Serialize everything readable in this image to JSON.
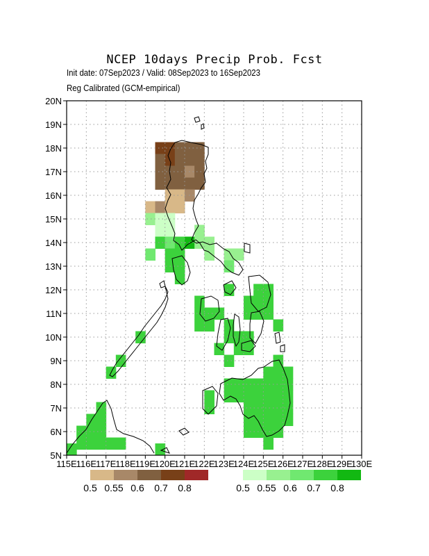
{
  "title": "NCEP 10days Precip Prob. Fcst",
  "subtitle_1": "Init date: 07Sep2023 / Valid: 08Sep2023 to 16Sep2023",
  "subtitle_2": "Reg Calibrated (GCM-empirical)",
  "map": {
    "lon_range": [
      115,
      130
    ],
    "lat_range": [
      5,
      20
    ],
    "x_ticks": [
      "115E",
      "116E",
      "117E",
      "118E",
      "119E",
      "120E",
      "121E",
      "122E",
      "123E",
      "124E",
      "125E",
      "126E",
      "127E",
      "128E",
      "129E",
      "130E"
    ],
    "y_ticks": [
      "5N",
      "6N",
      "7N",
      "8N",
      "9N",
      "10N",
      "11N",
      "12N",
      "13N",
      "14N",
      "15N",
      "16N",
      "17N",
      "18N",
      "19N",
      "20N"
    ],
    "grid": true,
    "cell_deg": 0.5
  },
  "legend_dry": {
    "colors": [
      "#d8b888",
      "#a88868",
      "#806040",
      "#784018",
      "#a02828"
    ],
    "labels": [
      "0.5",
      "0.55",
      "0.6",
      "0.7",
      "0.8"
    ]
  },
  "legend_wet": {
    "colors": [
      "#ccffc6",
      "#98f090",
      "#70e870",
      "#3cd23c",
      "#12b812"
    ],
    "labels": [
      "0.5",
      "0.55",
      "0.6",
      "0.7",
      "0.8"
    ]
  },
  "dry_cells": [
    {
      "lon": 119.75,
      "lat": 18.0,
      "level": 3
    },
    {
      "lon": 120.25,
      "lat": 18.0,
      "level": 3
    },
    {
      "lon": 120.75,
      "lat": 18.0,
      "level": 2
    },
    {
      "lon": 121.25,
      "lat": 18.0,
      "level": 2
    },
    {
      "lon": 121.75,
      "lat": 18.0,
      "level": 2
    },
    {
      "lon": 119.75,
      "lat": 17.5,
      "level": 2
    },
    {
      "lon": 120.25,
      "lat": 17.5,
      "level": 3
    },
    {
      "lon": 120.75,
      "lat": 17.5,
      "level": 2
    },
    {
      "lon": 121.25,
      "lat": 17.5,
      "level": 2
    },
    {
      "lon": 121.75,
      "lat": 17.5,
      "level": 2
    },
    {
      "lon": 119.75,
      "lat": 17.0,
      "level": 2
    },
    {
      "lon": 120.25,
      "lat": 17.0,
      "level": 2
    },
    {
      "lon": 120.75,
      "lat": 17.0,
      "level": 2
    },
    {
      "lon": 121.25,
      "lat": 17.0,
      "level": 1
    },
    {
      "lon": 121.75,
      "lat": 17.0,
      "level": 2
    },
    {
      "lon": 119.75,
      "lat": 16.5,
      "level": 2
    },
    {
      "lon": 120.25,
      "lat": 16.5,
      "level": 2
    },
    {
      "lon": 120.75,
      "lat": 16.5,
      "level": 2
    },
    {
      "lon": 121.25,
      "lat": 16.5,
      "level": 2
    },
    {
      "lon": 121.75,
      "lat": 16.5,
      "level": 2
    },
    {
      "lon": 120.25,
      "lat": 16.0,
      "level": 0
    },
    {
      "lon": 120.75,
      "lat": 16.0,
      "level": 0
    },
    {
      "lon": 121.25,
      "lat": 16.0,
      "level": 1
    },
    {
      "lon": 119.25,
      "lat": 15.5,
      "level": 0
    },
    {
      "lon": 119.75,
      "lat": 15.5,
      "level": 1
    },
    {
      "lon": 120.25,
      "lat": 15.5,
      "level": 0
    },
    {
      "lon": 120.75,
      "lat": 15.5,
      "level": 0
    }
  ],
  "wet_cells": [
    {
      "lon": 119.25,
      "lat": 15.0,
      "level": 1
    },
    {
      "lon": 119.75,
      "lat": 15.0,
      "level": 0
    },
    {
      "lon": 120.25,
      "lat": 15.0,
      "level": 0
    },
    {
      "lon": 119.75,
      "lat": 14.5,
      "level": 0
    },
    {
      "lon": 120.25,
      "lat": 14.5,
      "level": 0
    },
    {
      "lon": 121.75,
      "lat": 14.5,
      "level": 1
    },
    {
      "lon": 119.75,
      "lat": 14.0,
      "level": 3
    },
    {
      "lon": 120.25,
      "lat": 14.0,
      "level": 2
    },
    {
      "lon": 120.75,
      "lat": 14.0,
      "level": 3
    },
    {
      "lon": 121.25,
      "lat": 14.0,
      "level": 4
    },
    {
      "lon": 121.75,
      "lat": 14.0,
      "level": 1
    },
    {
      "lon": 122.25,
      "lat": 14.0,
      "level": 1
    },
    {
      "lon": 119.25,
      "lat": 13.5,
      "level": 2
    },
    {
      "lon": 120.25,
      "lat": 13.5,
      "level": 3
    },
    {
      "lon": 120.75,
      "lat": 13.5,
      "level": 3
    },
    {
      "lon": 122.25,
      "lat": 13.5,
      "level": 1
    },
    {
      "lon": 123.25,
      "lat": 13.5,
      "level": 1
    },
    {
      "lon": 123.75,
      "lat": 13.5,
      "level": 1
    },
    {
      "lon": 120.25,
      "lat": 13.0,
      "level": 3
    },
    {
      "lon": 120.75,
      "lat": 13.0,
      "level": 3
    },
    {
      "lon": 123.25,
      "lat": 13.0,
      "level": 2
    },
    {
      "lon": 120.75,
      "lat": 12.5,
      "level": 3
    },
    {
      "lon": 123.25,
      "lat": 12.0,
      "level": 3
    },
    {
      "lon": 124.75,
      "lat": 12.0,
      "level": 3
    },
    {
      "lon": 125.25,
      "lat": 12.0,
      "level": 3
    },
    {
      "lon": 121.75,
      "lat": 11.5,
      "level": 3
    },
    {
      "lon": 124.25,
      "lat": 11.5,
      "level": 3
    },
    {
      "lon": 124.75,
      "lat": 11.5,
      "level": 3
    },
    {
      "lon": 125.25,
      "lat": 11.5,
      "level": 3
    },
    {
      "lon": 121.75,
      "lat": 11.0,
      "level": 3
    },
    {
      "lon": 122.25,
      "lat": 11.0,
      "level": 3
    },
    {
      "lon": 122.75,
      "lat": 11.0,
      "level": 3
    },
    {
      "lon": 124.25,
      "lat": 11.0,
      "level": 3
    },
    {
      "lon": 124.75,
      "lat": 11.0,
      "level": 3
    },
    {
      "lon": 125.25,
      "lat": 11.0,
      "level": 3
    },
    {
      "lon": 121.75,
      "lat": 10.5,
      "level": 3
    },
    {
      "lon": 122.25,
      "lat": 10.5,
      "level": 3
    },
    {
      "lon": 123.25,
      "lat": 10.5,
      "level": 3
    },
    {
      "lon": 125.75,
      "lat": 10.5,
      "level": 3
    },
    {
      "lon": 123.25,
      "lat": 10.0,
      "level": 3
    },
    {
      "lon": 123.75,
      "lat": 10.0,
      "level": 3
    },
    {
      "lon": 124.25,
      "lat": 10.0,
      "level": 3
    },
    {
      "lon": 118.75,
      "lat": 10.0,
      "level": 3
    },
    {
      "lon": 122.75,
      "lat": 9.5,
      "level": 3
    },
    {
      "lon": 123.75,
      "lat": 9.5,
      "level": 3
    },
    {
      "lon": 124.25,
      "lat": 9.5,
      "level": 3
    },
    {
      "lon": 117.75,
      "lat": 9.0,
      "level": 3
    },
    {
      "lon": 123.25,
      "lat": 9.0,
      "level": 3
    },
    {
      "lon": 125.75,
      "lat": 9.0,
      "level": 3
    },
    {
      "lon": 117.25,
      "lat": 8.5,
      "level": 3
    },
    {
      "lon": 125.25,
      "lat": 8.5,
      "level": 3
    },
    {
      "lon": 125.75,
      "lat": 8.5,
      "level": 3
    },
    {
      "lon": 126.25,
      "lat": 8.5,
      "level": 3
    },
    {
      "lon": 123.25,
      "lat": 8.0,
      "level": 3
    },
    {
      "lon": 123.75,
      "lat": 8.0,
      "level": 3
    },
    {
      "lon": 124.25,
      "lat": 8.0,
      "level": 3
    },
    {
      "lon": 124.75,
      "lat": 8.0,
      "level": 3
    },
    {
      "lon": 125.25,
      "lat": 8.0,
      "level": 3
    },
    {
      "lon": 125.75,
      "lat": 8.0,
      "level": 3
    },
    {
      "lon": 126.25,
      "lat": 8.0,
      "level": 3
    },
    {
      "lon": 122.25,
      "lat": 7.5,
      "level": 3
    },
    {
      "lon": 123.25,
      "lat": 7.5,
      "level": 3
    },
    {
      "lon": 123.75,
      "lat": 7.5,
      "level": 3
    },
    {
      "lon": 124.25,
      "lat": 7.5,
      "level": 3
    },
    {
      "lon": 124.75,
      "lat": 7.5,
      "level": 3
    },
    {
      "lon": 125.25,
      "lat": 7.5,
      "level": 3
    },
    {
      "lon": 125.75,
      "lat": 7.5,
      "level": 3
    },
    {
      "lon": 126.25,
      "lat": 7.5,
      "level": 3
    },
    {
      "lon": 116.75,
      "lat": 7.0,
      "level": 3
    },
    {
      "lon": 122.25,
      "lat": 7.0,
      "level": 3
    },
    {
      "lon": 124.25,
      "lat": 7.0,
      "level": 3
    },
    {
      "lon": 124.75,
      "lat": 7.0,
      "level": 3
    },
    {
      "lon": 125.25,
      "lat": 7.0,
      "level": 3
    },
    {
      "lon": 125.75,
      "lat": 7.0,
      "level": 3
    },
    {
      "lon": 126.25,
      "lat": 7.0,
      "level": 3
    },
    {
      "lon": 116.25,
      "lat": 6.5,
      "level": 3
    },
    {
      "lon": 116.75,
      "lat": 6.5,
      "level": 3
    },
    {
      "lon": 124.25,
      "lat": 6.5,
      "level": 3
    },
    {
      "lon": 124.75,
      "lat": 6.5,
      "level": 3
    },
    {
      "lon": 125.25,
      "lat": 6.5,
      "level": 3
    },
    {
      "lon": 125.75,
      "lat": 6.5,
      "level": 3
    },
    {
      "lon": 126.25,
      "lat": 6.5,
      "level": 3
    },
    {
      "lon": 115.75,
      "lat": 6.0,
      "level": 3
    },
    {
      "lon": 116.25,
      "lat": 6.0,
      "level": 3
    },
    {
      "lon": 116.75,
      "lat": 6.0,
      "level": 3
    },
    {
      "lon": 124.25,
      "lat": 6.0,
      "level": 3
    },
    {
      "lon": 124.75,
      "lat": 6.0,
      "level": 3
    },
    {
      "lon": 125.25,
      "lat": 6.0,
      "level": 3
    },
    {
      "lon": 125.75,
      "lat": 6.0,
      "level": 3
    },
    {
      "lon": 115.75,
      "lat": 5.5,
      "level": 3
    },
    {
      "lon": 116.25,
      "lat": 5.5,
      "level": 3
    },
    {
      "lon": 116.75,
      "lat": 5.5,
      "level": 3
    },
    {
      "lon": 117.25,
      "lat": 5.5,
      "level": 3
    },
    {
      "lon": 117.75,
      "lat": 5.5,
      "level": 3
    },
    {
      "lon": 125.25,
      "lat": 5.5,
      "level": 3
    },
    {
      "lon": 115.25,
      "lat": 5.25,
      "level": 3
    },
    {
      "lon": 119.75,
      "lat": 5.25,
      "level": 3
    }
  ]
}
